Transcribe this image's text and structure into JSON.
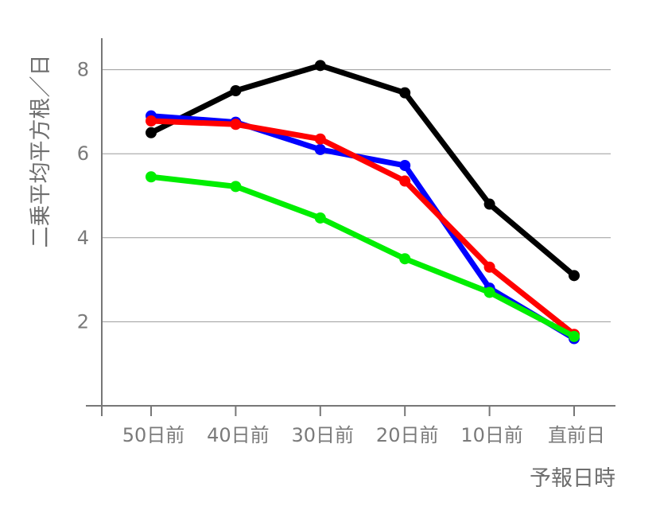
{
  "chart_data": {
    "type": "line",
    "xlabel": "予報日時",
    "ylabel": "二乗平均平方根／日",
    "categories": [
      "50日前",
      "40日前",
      "30日前",
      "20日前",
      "10日前",
      "直前日"
    ],
    "ylim": [
      0,
      8.75
    ],
    "yticks": [
      2,
      4,
      6,
      8
    ],
    "grid": "horizontal",
    "series": [
      {
        "color": "#000000",
        "values": [
          6.5,
          7.5,
          8.1,
          7.45,
          4.8,
          3.1
        ]
      },
      {
        "color": "#0000ff",
        "values": [
          6.9,
          6.75,
          6.1,
          5.72,
          2.8,
          1.6
        ]
      },
      {
        "color": "#ff0000",
        "values": [
          6.78,
          6.7,
          6.35,
          5.35,
          3.3,
          1.7
        ]
      },
      {
        "color": "#00ee00",
        "values": [
          5.45,
          5.22,
          4.47,
          3.5,
          2.7,
          1.65
        ]
      }
    ]
  }
}
